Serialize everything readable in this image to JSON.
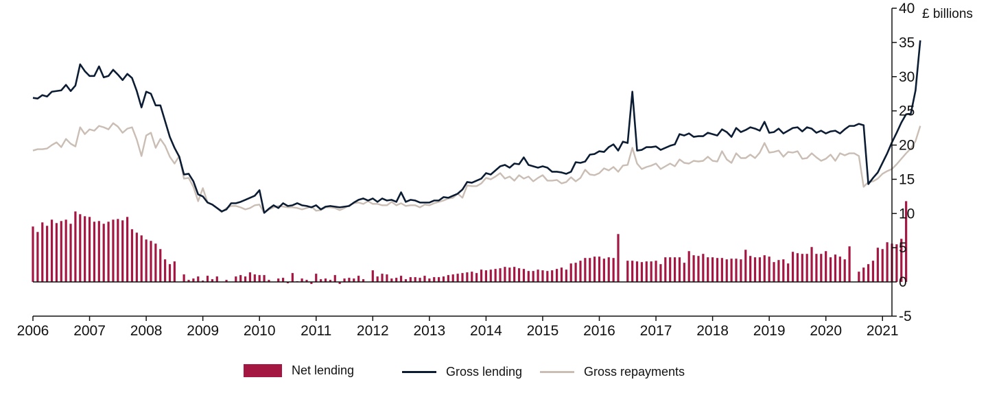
{
  "chart_data": {
    "type": "bar+line",
    "title": "",
    "xlabel": "",
    "ylabel": "£ billions",
    "ylim": [
      -5,
      40
    ],
    "yticks": [
      "-5",
      "0",
      "5",
      "10",
      "15",
      "20",
      "25",
      "30",
      "35",
      "40"
    ],
    "xticks": [
      "2006",
      "2007",
      "2008",
      "2009",
      "2010",
      "2011",
      "2012",
      "2013",
      "2014",
      "2015",
      "2016",
      "2017",
      "2018",
      "2019",
      "2020",
      "2021"
    ],
    "x_start": "2006-01",
    "x_end": "2021-03",
    "frequency": "monthly",
    "series": [
      {
        "name": "Net lending",
        "type": "bar",
        "color": "#a51743",
        "values": [
          8.1,
          7.3,
          8.7,
          8.2,
          9.1,
          8.6,
          8.9,
          9.1,
          8.5,
          10.3,
          9.9,
          9.6,
          9.5,
          8.8,
          8.9,
          8.5,
          8.8,
          9.1,
          9.2,
          9.0,
          9.5,
          7.7,
          7.2,
          6.8,
          6.2,
          6.0,
          5.6,
          4.8,
          3.3,
          2.6,
          3.0,
          0.0,
          1.1,
          0.3,
          0.5,
          0.8,
          0.2,
          0.9,
          0.4,
          0.8,
          0.0,
          0.3,
          0.0,
          0.8,
          1.0,
          0.8,
          1.4,
          1.1,
          1.0,
          1.0,
          0.3,
          0.0,
          0.5,
          0.6,
          -0.2,
          1.3,
          0.1,
          0.5,
          0.3,
          -0.3,
          1.2,
          0.4,
          0.5,
          0.3,
          1.0,
          -0.3,
          0.5,
          0.6,
          0.5,
          0.9,
          0.4,
          0.0,
          1.7,
          0.8,
          1.2,
          1.1,
          0.5,
          0.6,
          0.9,
          0.4,
          0.7,
          0.7,
          0.6,
          0.9,
          0.5,
          0.7,
          0.7,
          0.8,
          1.0,
          1.1,
          1.2,
          1.3,
          1.4,
          1.5,
          1.3,
          1.8,
          1.7,
          1.8,
          1.9,
          2.0,
          2.2,
          2.1,
          2.2,
          2.0,
          1.9,
          1.6,
          1.6,
          1.8,
          1.7,
          1.6,
          1.7,
          1.9,
          2.1,
          1.8,
          2.7,
          2.8,
          3.1,
          3.5,
          3.5,
          3.7,
          3.7,
          3.4,
          3.6,
          3.5,
          7.0,
          0.0,
          3.1,
          3.1,
          3.0,
          2.9,
          3.0,
          3.0,
          3.1,
          2.6,
          3.6,
          3.6,
          3.6,
          3.6,
          2.8,
          4.5,
          3.9,
          3.8,
          4.1,
          3.6,
          3.6,
          3.5,
          3.5,
          3.3,
          3.4,
          3.4,
          3.3,
          4.7,
          3.8,
          3.6,
          3.6,
          3.9,
          3.7,
          2.9,
          3.2,
          3.3,
          2.7,
          4.4,
          4.2,
          4.1,
          4.1,
          5.1,
          4.1,
          4.1,
          4.5,
          3.6,
          4.0,
          3.7,
          3.3,
          5.2,
          0.0,
          1.5,
          2.1,
          2.6,
          3.1,
          5.0,
          4.8,
          5.8,
          5.6,
          5.5,
          6.3,
          11.8
        ]
      },
      {
        "name": "Gross lending",
        "type": "line",
        "color": "#0b1c33",
        "values": [
          26.9,
          26.8,
          27.3,
          27.1,
          27.8,
          27.9,
          28.0,
          28.8,
          27.9,
          28.7,
          31.8,
          30.8,
          30.1,
          30.1,
          31.5,
          29.9,
          30.1,
          31.0,
          30.3,
          29.5,
          30.4,
          29.8,
          27.9,
          25.5,
          27.8,
          27.5,
          25.8,
          25.8,
          23.5,
          21.2,
          19.6,
          18.3,
          15.7,
          15.8,
          14.7,
          12.8,
          12.5,
          11.6,
          11.3,
          10.8,
          10.3,
          10.6,
          11.5,
          11.5,
          11.7,
          12.0,
          12.3,
          12.6,
          13.4,
          10.1,
          10.7,
          11.2,
          10.8,
          11.5,
          11.1,
          11.2,
          11.5,
          11.2,
          11.1,
          10.9,
          11.2,
          10.6,
          11.0,
          11.1,
          11.0,
          10.9,
          11.0,
          11.1,
          11.6,
          12.0,
          12.2,
          11.9,
          12.2,
          11.7,
          12.2,
          11.9,
          12.0,
          11.7,
          13.1,
          11.7,
          12.0,
          11.9,
          11.6,
          11.6,
          11.6,
          11.9,
          11.9,
          12.4,
          12.3,
          12.6,
          12.9,
          13.5,
          14.6,
          14.5,
          14.8,
          15.1,
          15.9,
          15.7,
          16.3,
          16.9,
          17.1,
          16.7,
          17.3,
          17.2,
          18.2,
          17.1,
          16.9,
          16.7,
          16.9,
          16.7,
          16.1,
          16.1,
          16.0,
          15.8,
          16.1,
          17.5,
          17.4,
          17.6,
          18.6,
          18.7,
          19.1,
          19.0,
          19.7,
          20.1,
          19.2,
          20.5,
          20.3,
          27.8,
          19.2,
          19.3,
          19.7,
          19.7,
          19.8,
          19.3,
          19.6,
          19.9,
          20.1,
          21.6,
          21.4,
          21.7,
          21.2,
          21.3,
          21.3,
          21.8,
          21.6,
          21.4,
          22.3,
          21.9,
          21.2,
          22.5,
          21.9,
          22.2,
          22.6,
          22.4,
          22.1,
          23.4,
          21.8,
          21.9,
          22.4,
          21.7,
          22.1,
          22.5,
          22.6,
          22.0,
          22.6,
          22.4,
          21.8,
          22.1,
          21.7,
          22.0,
          22.1,
          21.7,
          22.3,
          22.8,
          22.8,
          23.1,
          22.9,
          14.3,
          15.2,
          16.0,
          17.4,
          18.8,
          20.4,
          21.8,
          23.3,
          24.5,
          24.6,
          28.0,
          35.3
        ]
      },
      {
        "name": "Gross repayments",
        "type": "line",
        "color": "#c9bdb4",
        "values": [
          19.2,
          19.4,
          19.4,
          19.5,
          20.0,
          20.4,
          19.7,
          20.9,
          20.2,
          19.8,
          22.6,
          21.6,
          22.3,
          22.1,
          22.8,
          22.6,
          22.3,
          23.2,
          22.7,
          21.8,
          22.4,
          22.6,
          20.8,
          18.4,
          21.4,
          21.8,
          19.6,
          20.9,
          19.9,
          18.3,
          17.3,
          18.4,
          15.1,
          15.2,
          13.9,
          11.8,
          13.7,
          11.6,
          11.3,
          10.8,
          10.2,
          10.8,
          11.1,
          11.1,
          10.9,
          10.6,
          10.8,
          11.2,
          11.3,
          10.1,
          10.6,
          10.9,
          11.1,
          11.0,
          10.9,
          10.9,
          10.8,
          10.6,
          10.8,
          11.0,
          10.4,
          10.5,
          10.9,
          10.9,
          10.8,
          10.5,
          10.8,
          11.2,
          11.5,
          11.6,
          11.4,
          11.8,
          11.4,
          11.4,
          11.2,
          11.2,
          11.7,
          11.2,
          11.5,
          11.1,
          11.2,
          11.2,
          10.9,
          11.3,
          11.2,
          11.5,
          11.7,
          11.9,
          12.2,
          12.3,
          12.9,
          12.3,
          14.1,
          14.0,
          14.0,
          14.4,
          15.2,
          15.0,
          15.4,
          15.9,
          15.1,
          15.4,
          14.8,
          15.6,
          15.1,
          15.4,
          14.7,
          15.2,
          15.6,
          14.8,
          14.8,
          14.9,
          14.4,
          14.6,
          15.3,
          14.7,
          15.2,
          16.4,
          15.7,
          15.6,
          15.9,
          16.6,
          16.3,
          16.8,
          16.1,
          17.0,
          17.1,
          19.6,
          17.3,
          16.5,
          16.8,
          17.0,
          17.3,
          16.5,
          16.9,
          17.3,
          16.9,
          17.9,
          17.4,
          17.3,
          17.7,
          17.6,
          17.7,
          18.3,
          17.7,
          17.6,
          19.1,
          17.9,
          17.4,
          18.8,
          18.1,
          18.1,
          18.6,
          18.1,
          18.9,
          20.3,
          18.9,
          19.0,
          19.2,
          18.3,
          19.0,
          18.9,
          19.1,
          18.0,
          18.1,
          18.8,
          18.2,
          17.7,
          18.0,
          18.6,
          17.7,
          18.8,
          18.5,
          18.8,
          18.8,
          18.4,
          13.9,
          14.6,
          14.7,
          15.1,
          15.8,
          16.2,
          16.5,
          17.2,
          18.0,
          18.8,
          19.5,
          20.6,
          22.8
        ]
      }
    ],
    "legend": {
      "position": "bottom",
      "items": [
        "Net lending",
        "Gross lending",
        "Gross repayments"
      ]
    },
    "grid": false,
    "y_axis_side": "right"
  }
}
